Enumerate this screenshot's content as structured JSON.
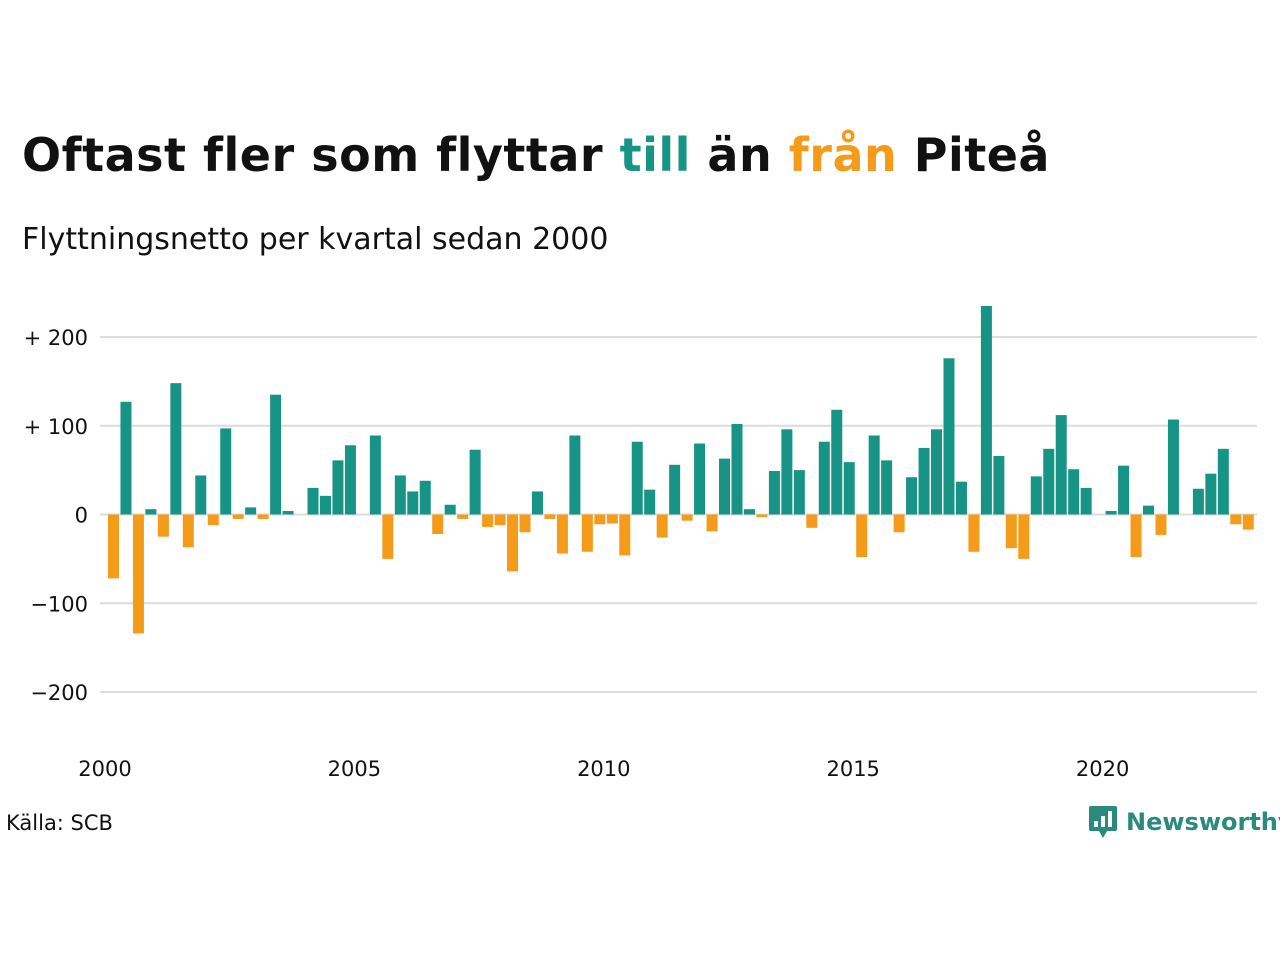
{
  "header": {
    "title_part1": "Oftast fler som flyttar ",
    "title_part2": "till",
    "title_part3": " än ",
    "title_part4": "från",
    "title_part5": " Piteå",
    "subtitle": "Flyttningsnetto per kvartal sedan 2000"
  },
  "colors": {
    "positive": "#179485",
    "negative": "#f59b1a",
    "gridline": "#dcdcdc",
    "text": "#111111",
    "brand": "#2a8a7b"
  },
  "footer": {
    "source": "Källa: SCB",
    "brand_name": "Newsworthy",
    "brand_icon": "chart-bubble-icon"
  },
  "chart_data": {
    "type": "bar",
    "x_start_year": 2000,
    "periods_per_year": 4,
    "x_ticks": [
      "2000",
      "2005",
      "2010",
      "2015",
      "2020"
    ],
    "y_ticks": [
      {
        "value": 200,
        "label": "+ 200"
      },
      {
        "value": 100,
        "label": "+ 100"
      },
      {
        "value": 0,
        "label": "0"
      },
      {
        "value": -100,
        "label": "−100"
      },
      {
        "value": -200,
        "label": "−200"
      }
    ],
    "ylim": [
      -250,
      240
    ],
    "grid": true,
    "values": [
      -72,
      127,
      -134,
      6,
      -25,
      148,
      -37,
      44,
      -12,
      97,
      -5,
      8,
      -5,
      135,
      4,
      0,
      30,
      21,
      61,
      78,
      0,
      89,
      -50,
      44,
      26,
      38,
      -22,
      11,
      -5,
      73,
      -14,
      -12,
      -64,
      -20,
      26,
      -5,
      -44,
      89,
      -42,
      -11,
      -10,
      -46,
      82,
      28,
      -26,
      56,
      -7,
      80,
      -19,
      63,
      102,
      6,
      -3,
      49,
      96,
      50,
      -15,
      82,
      118,
      59,
      -48,
      89,
      61,
      -20,
      42,
      75,
      96,
      176,
      37,
      -42,
      235,
      66,
      -38,
      -50,
      43,
      74,
      112,
      51,
      30,
      0,
      4,
      55,
      -48,
      10,
      -23,
      107,
      0,
      29,
      46,
      74,
      -11,
      -17
    ]
  }
}
